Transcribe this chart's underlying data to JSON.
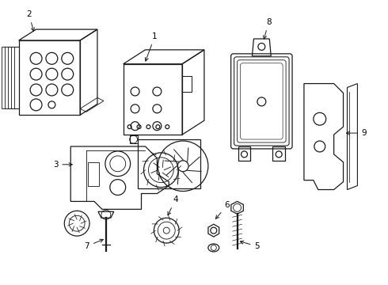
{
  "bg_color": "#ffffff",
  "line_color": "#1a1a1a",
  "figsize": [
    4.9,
    3.6
  ],
  "dpi": 100,
  "label_fs": 7.5,
  "lw": 0.9
}
